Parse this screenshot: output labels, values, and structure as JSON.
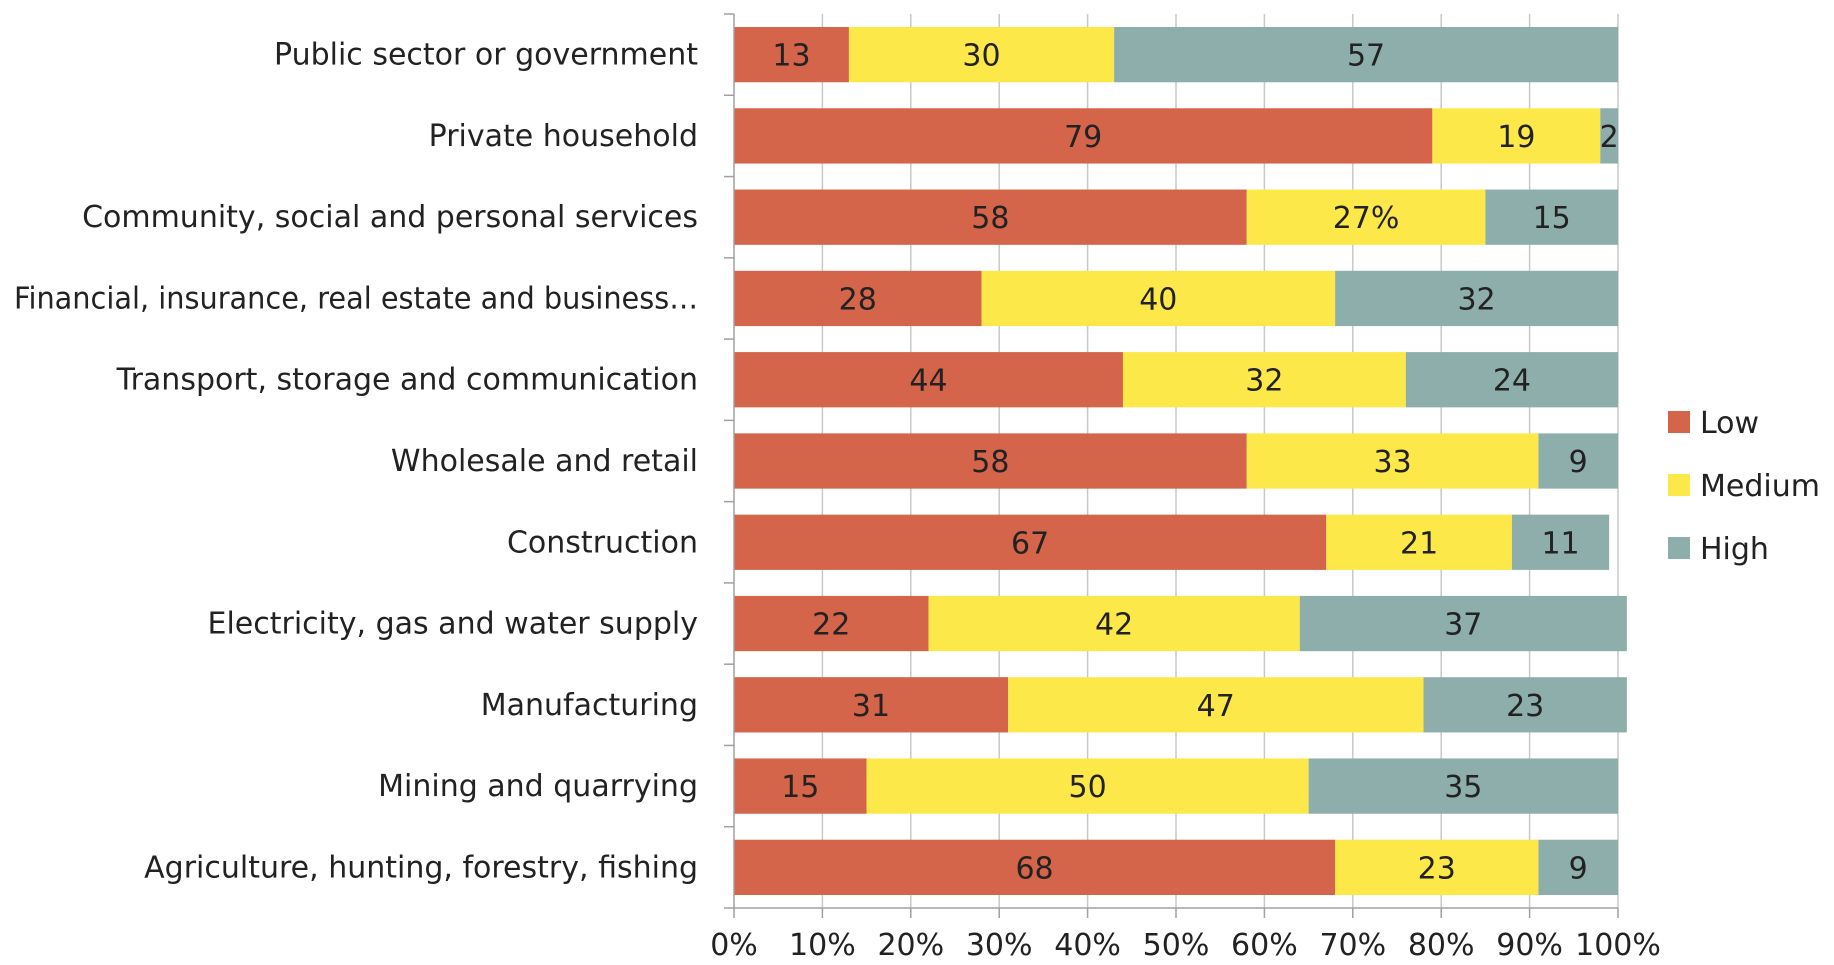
{
  "chart_data": {
    "type": "bar",
    "orientation": "horizontal",
    "stacked": true,
    "title": "",
    "xlabel": "",
    "ylabel": "",
    "xlim": [
      0,
      100
    ],
    "grid": "vertical",
    "legend_position": "right",
    "categories": [
      "Public sector or government",
      "Private household",
      "Community, social and personal services",
      "Financial, insurance, real estate and business…",
      "Transport, storage and communication",
      "Wholesale and retail",
      "Construction",
      "Electricity, gas and water supply",
      "Manufacturing",
      "Mining and quarrying",
      "Agriculture, hunting, forestry, fishing"
    ],
    "x_ticks": [
      "0%",
      "10%",
      "20%",
      "30%",
      "40%",
      "50%",
      "60%",
      "70%",
      "80%",
      "90%",
      "100%"
    ],
    "series": [
      {
        "name": "Low",
        "color": "#d4644a",
        "values": [
          13,
          79,
          58,
          28,
          44,
          58,
          67,
          22,
          31,
          15,
          68
        ],
        "labels": [
          "13",
          "79",
          "58",
          "28",
          "44",
          "58",
          "67",
          "22",
          "31",
          "15",
          "68"
        ]
      },
      {
        "name": "Medium",
        "color": "#fde84a",
        "values": [
          30,
          19,
          27,
          40,
          32,
          33,
          21,
          42,
          47,
          50,
          23
        ],
        "labels": [
          "30",
          "19",
          "27%",
          "40",
          "32",
          "33",
          "21",
          "42",
          "47",
          "50",
          "23"
        ]
      },
      {
        "name": "High",
        "color": "#8eaeab",
        "values": [
          57,
          2,
          15,
          32,
          24,
          9,
          11,
          37,
          23,
          35,
          9
        ],
        "labels": [
          "57",
          "2",
          "15",
          "32",
          "24",
          "9",
          "11",
          "37",
          "23",
          "35",
          "9"
        ]
      }
    ]
  }
}
